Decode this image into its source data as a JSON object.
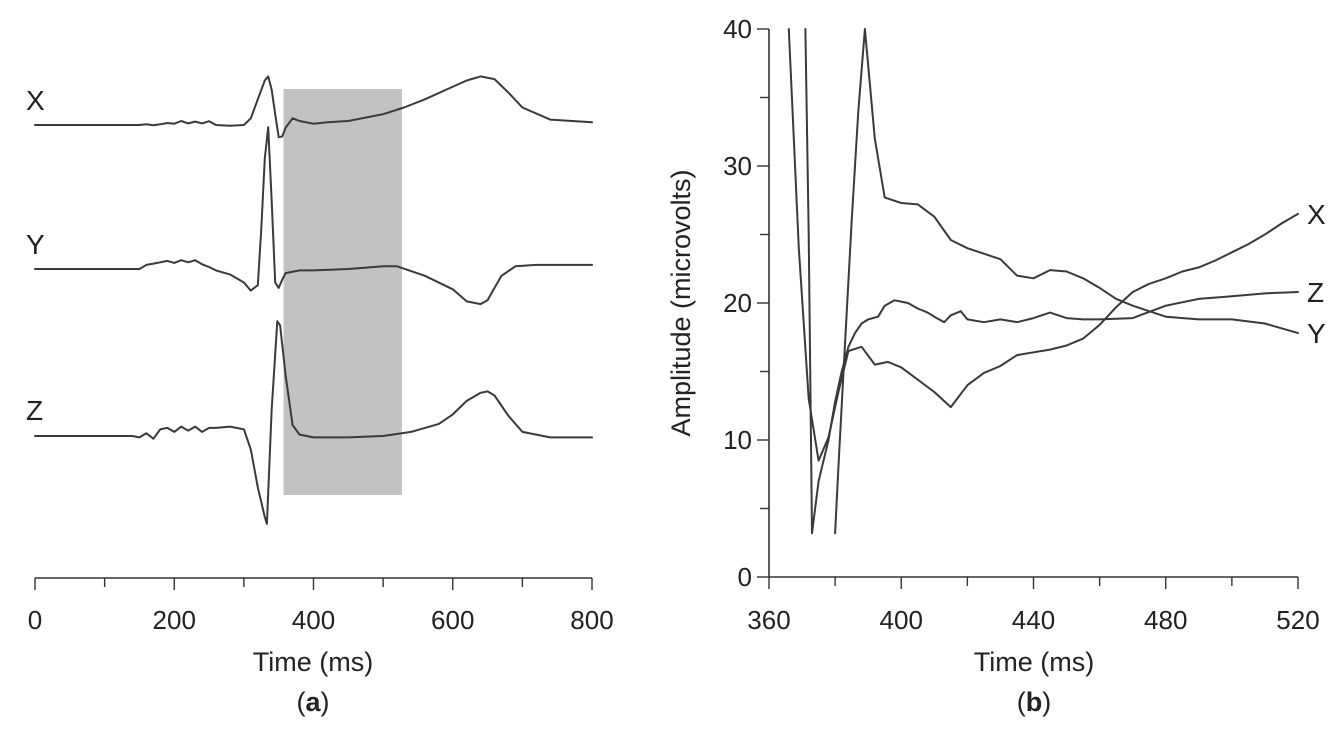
{
  "colors": {
    "trace": "#3a3a3a",
    "window_fill": "#c2c2c2",
    "axis": "#333333",
    "background": "#ffffff"
  },
  "chart_data": [
    {
      "panel_label": "a",
      "type": "line",
      "xlabel": "Time (ms)",
      "ylabel": "",
      "xlim": [
        0,
        800
      ],
      "x_ticks": [
        0,
        200,
        400,
        600,
        800
      ],
      "minor_x_ticks": [
        100,
        300,
        500,
        700
      ],
      "y_axis_shown": false,
      "grid": false,
      "shaded_window": {
        "x_start": 357,
        "x_end": 527
      },
      "series": [
        {
          "name": "X",
          "x": [
            0,
            150,
            160,
            170,
            180,
            190,
            200,
            210,
            220,
            230,
            240,
            250,
            260,
            280,
            300,
            310,
            320,
            330,
            335,
            340,
            345,
            350,
            355,
            360,
            370,
            380,
            400,
            420,
            450,
            500,
            530,
            560,
            590,
            620,
            640,
            660,
            680,
            700,
            740,
            800
          ],
          "values": [
            0,
            0,
            0.05,
            -0.02,
            0.05,
            0.15,
            0.1,
            0.3,
            0.12,
            0.25,
            0.12,
            0.28,
            0,
            -0.05,
            0,
            0.5,
            1.9,
            3.3,
            3.6,
            2.6,
            0.8,
            -0.9,
            -0.85,
            -0.2,
            0.5,
            0.3,
            0.1,
            0.2,
            0.3,
            0.8,
            1.3,
            1.9,
            2.6,
            3.3,
            3.6,
            3.4,
            2.4,
            1.3,
            0.4,
            0.2
          ]
        },
        {
          "name": "Y",
          "x": [
            0,
            150,
            160,
            170,
            180,
            190,
            200,
            210,
            220,
            230,
            240,
            250,
            260,
            280,
            300,
            310,
            320,
            325,
            330,
            335,
            340,
            345,
            350,
            355,
            360,
            380,
            400,
            450,
            500,
            520,
            560,
            600,
            620,
            640,
            650,
            660,
            670,
            690,
            720,
            800
          ],
          "values": [
            0,
            0,
            0.3,
            0.4,
            0.5,
            0.6,
            0.45,
            0.65,
            0.5,
            0.65,
            0.35,
            0.15,
            -0.1,
            -0.4,
            -1.0,
            -1.6,
            -1.2,
            3.0,
            8.2,
            10.5,
            5.0,
            -1.0,
            -1.4,
            -0.8,
            -0.3,
            -0.1,
            -0.1,
            0,
            0.2,
            0.2,
            -0.5,
            -1.5,
            -2.4,
            -2.6,
            -2.3,
            -1.4,
            -0.5,
            0.2,
            0.3,
            0.3
          ]
        },
        {
          "name": "Z",
          "x": [
            0,
            140,
            150,
            160,
            170,
            180,
            190,
            200,
            210,
            220,
            230,
            240,
            250,
            260,
            280,
            300,
            310,
            320,
            330,
            333,
            340,
            348,
            352,
            360,
            370,
            380,
            400,
            450,
            500,
            540,
            580,
            600,
            620,
            640,
            650,
            660,
            680,
            700,
            740,
            800
          ],
          "values": [
            0,
            0,
            -0.1,
            0.2,
            -0.2,
            0.5,
            0.6,
            0.3,
            0.7,
            0.4,
            0.7,
            0.3,
            0.6,
            0.6,
            0.7,
            0.5,
            -1.0,
            -3.8,
            -6.0,
            -6.5,
            2.0,
            8.5,
            8.2,
            4.5,
            0.8,
            0.1,
            -0.1,
            -0.1,
            0,
            0.3,
            0.9,
            1.6,
            2.6,
            3.2,
            3.3,
            3.0,
            1.5,
            0.3,
            -0.1,
            -0.1
          ]
        }
      ]
    },
    {
      "panel_label": "b",
      "type": "line",
      "xlabel": "Time (ms)",
      "ylabel": "Amplitude (microvolts)",
      "xlim": [
        360,
        520
      ],
      "ylim": [
        0,
        40
      ],
      "x_ticks": [
        360,
        400,
        440,
        480,
        520
      ],
      "minor_x_ticks": [
        380,
        420,
        460,
        500
      ],
      "y_ticks": [
        0,
        10,
        20,
        30,
        40
      ],
      "minor_y_ticks": [
        5,
        15,
        25,
        35
      ],
      "grid": false,
      "series": [
        {
          "name": "X",
          "x": [
            366,
            369,
            372,
            375,
            378,
            381,
            384,
            388,
            392,
            396,
            400,
            405,
            410,
            415,
            420,
            425,
            430,
            435,
            440,
            445,
            450,
            455,
            460,
            465,
            470,
            475,
            480,
            485,
            490,
            495,
            500,
            505,
            510,
            515,
            520
          ],
          "values": [
            40,
            24,
            13,
            8.5,
            10.2,
            13.5,
            16.5,
            16.8,
            15.5,
            15.7,
            15.3,
            14.4,
            13.5,
            12.4,
            14.0,
            14.9,
            15.4,
            16.2,
            16.4,
            16.6,
            16.9,
            17.4,
            18.4,
            19.7,
            20.8,
            21.4,
            21.8,
            22.3,
            22.6,
            23.1,
            23.7,
            24.3,
            25.0,
            25.8,
            26.5
          ]
        },
        {
          "name": "Z",
          "x": [
            371,
            372,
            373,
            375,
            378,
            380,
            382,
            384,
            386,
            388,
            390,
            393,
            395,
            398,
            400,
            402,
            405,
            408,
            410,
            413,
            415,
            418,
            420,
            425,
            430,
            435,
            440,
            445,
            450,
            455,
            460,
            470,
            480,
            490,
            500,
            510,
            520
          ],
          "values": [
            40,
            25,
            3.2,
            7.0,
            10.0,
            12.8,
            15.0,
            16.8,
            17.8,
            18.5,
            18.8,
            19.0,
            19.8,
            20.2,
            20.1,
            20.0,
            19.6,
            19.3,
            19.0,
            18.6,
            19.1,
            19.4,
            18.8,
            18.6,
            18.8,
            18.6,
            18.9,
            19.3,
            18.9,
            18.8,
            18.8,
            18.9,
            19.8,
            20.3,
            20.5,
            20.7,
            20.8
          ]
        },
        {
          "name": "Y",
          "x": [
            380,
            381,
            383,
            385,
            387,
            389,
            392,
            395,
            400,
            405,
            410,
            415,
            420,
            425,
            430,
            435,
            440,
            445,
            450,
            455,
            460,
            465,
            470,
            480,
            490,
            500,
            510,
            520
          ],
          "values": [
            3.2,
            8.0,
            17.0,
            26.0,
            34.0,
            40.0,
            32.0,
            27.7,
            27.3,
            27.2,
            26.3,
            24.6,
            24.0,
            23.6,
            23.2,
            22.0,
            21.8,
            22.4,
            22.3,
            21.8,
            21.1,
            20.3,
            19.8,
            19.0,
            18.8,
            18.8,
            18.5,
            17.8
          ]
        }
      ]
    }
  ]
}
